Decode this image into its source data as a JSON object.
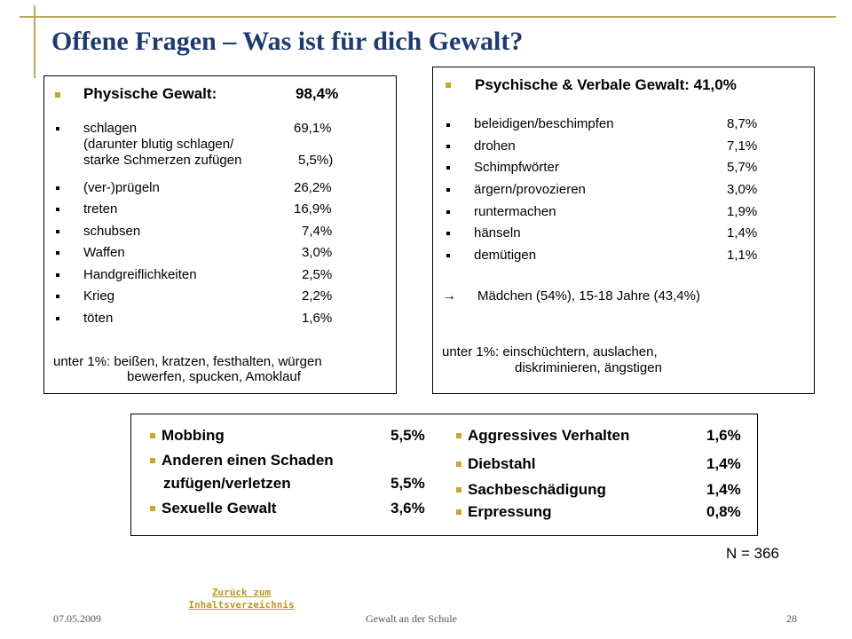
{
  "title": "Offene Fragen – Was ist für dich Gewalt?",
  "physisch": {
    "heading": "Physische Gewalt:",
    "heading_value": "98,4%",
    "items": [
      {
        "label": "schlagen",
        "value": "69,1%"
      },
      {
        "label": "(ver-)prügeln",
        "value": "26,2%"
      },
      {
        "label": "treten",
        "value": "16,9%"
      },
      {
        "label": "schubsen",
        "value": "7,4%"
      },
      {
        "label": "Waffen",
        "value": "3,0%"
      },
      {
        "label": "Handgreiflichkeiten",
        "value": "2,5%"
      },
      {
        "label": "Krieg",
        "value": "2,2%"
      },
      {
        "label": "töten",
        "value": "1,6%"
      }
    ],
    "sub_line1": "(darunter blutig schlagen/",
    "sub_line2": "starke Schmerzen zufügen",
    "sub_value": "5,5%)",
    "under_line1": "unter 1%: beißen, kratzen, festhalten, würgen",
    "under_line2": "bewerfen, spucken, Amoklauf"
  },
  "psychisch": {
    "heading": "Psychische & Verbale Gewalt: 41,0%",
    "items": [
      {
        "label": "beleidigen/beschimpfen",
        "value": "8,7%"
      },
      {
        "label": "drohen",
        "value": "7,1%"
      },
      {
        "label": "Schimpfwörter",
        "value": "5,7%"
      },
      {
        "label": "ärgern/provozieren",
        "value": "3,0%"
      },
      {
        "label": "runtermachen",
        "value": "1,9%"
      },
      {
        "label": "hänseln",
        "value": "1,4%"
      },
      {
        "label": "demütigen",
        "value": "1,1%"
      }
    ],
    "arrow": "→",
    "note": "Mädchen (54%), 15-18 Jahre (43,4%)",
    "under_line1": "unter 1%: einschüchtern, auslachen,",
    "under_line2": "diskriminieren, ängstigen"
  },
  "bottom": {
    "left": [
      {
        "label": "Mobbing",
        "value": "5,5%"
      },
      {
        "label": "Anderen einen Schaden",
        "value": ""
      },
      {
        "label": "zufügen/verletzen",
        "value": "5,5%"
      },
      {
        "label": "Sexuelle Gewalt",
        "value": "3,6%"
      }
    ],
    "right": [
      {
        "label": "Aggressives Verhalten",
        "value": "1,6%"
      },
      {
        "label": "Diebstahl",
        "value": "1,4%"
      },
      {
        "label": "Sachbeschädigung",
        "value": "1,4%"
      },
      {
        "label": "Erpressung",
        "value": "0,8%"
      }
    ]
  },
  "n_label": "N = 366",
  "footer": {
    "date": "07.05.2009",
    "link": "Zurück zum Inhaltsverzeichnis",
    "center": "Gewalt an der Schule",
    "page": "28"
  },
  "colors": {
    "title": "#1f3a6e",
    "accent_gold": "#c8a52c",
    "rule": "#b8a765",
    "link": "#b89a20"
  }
}
